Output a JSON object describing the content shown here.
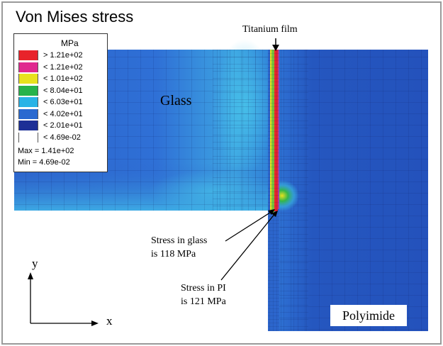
{
  "title": "Von Mises stress",
  "legend": {
    "unit": "MPa",
    "entries": [
      {
        "label": "> 1.21e+02",
        "color": "#e8232b"
      },
      {
        "label": "< 1.21e+02",
        "color": "#e0298f"
      },
      {
        "label": "< 1.01e+02",
        "color": "#e8e21e"
      },
      {
        "label": "< 8.04e+01",
        "color": "#27b34a"
      },
      {
        "label": "< 6.03e+01",
        "color": "#29b3e6"
      },
      {
        "label": "< 4.02e+01",
        "color": "#2a6ad0"
      },
      {
        "label": "< 2.01e+01",
        "color": "#1d2f96"
      },
      {
        "label": "< 4.69e-02",
        "color": "#ffffff"
      }
    ],
    "max": "Max = 1.41e+02",
    "min": "Min = 4.69e-02"
  },
  "labels": {
    "film": "Titanium film",
    "glass": "Glass",
    "polyimide": "Polyimide",
    "stress_glass_line1": "Stress in glass",
    "stress_glass_line2": "is 118 MPa",
    "stress_pi_line1": "Stress in PI",
    "stress_pi_line2": "is 121 MPa"
  },
  "axes": {
    "y": "y",
    "x": "x"
  },
  "colors": {
    "background_blue": "#2a5bc4",
    "deep_blue": "#1e3a9e",
    "cyan": "#3bb0e0",
    "film": "#e8232b"
  }
}
